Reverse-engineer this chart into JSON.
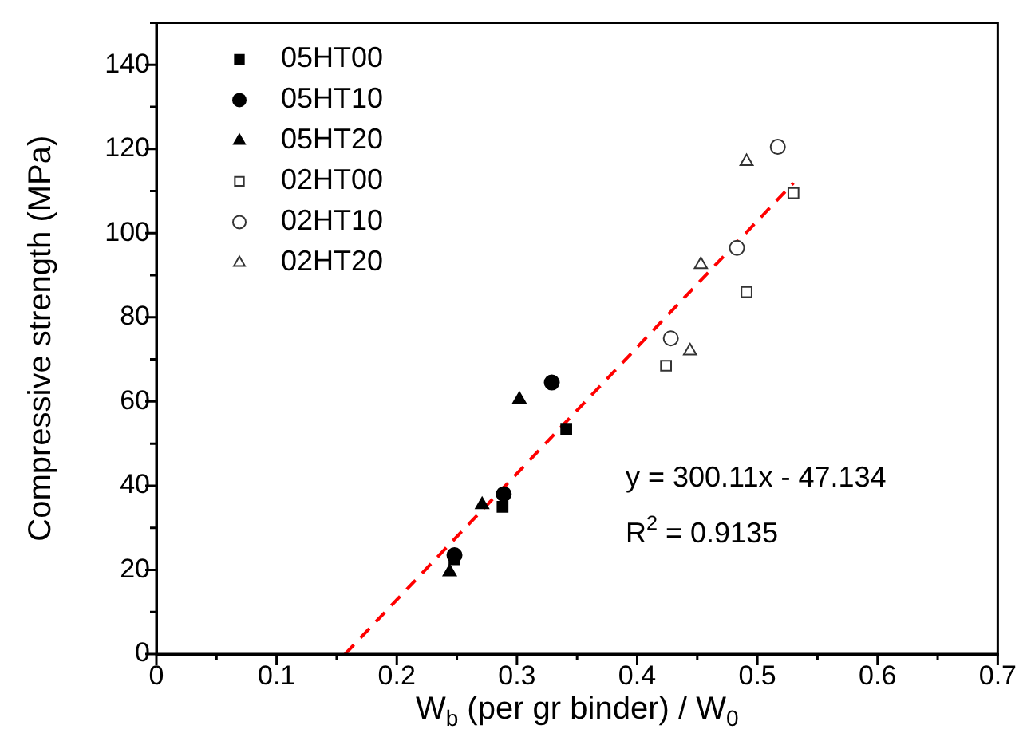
{
  "chart_data": {
    "type": "scatter",
    "xlabel": "W$_{b}$ (per gr binder) / W$_{0}$",
    "ylabel": "Compressive strength (MPa)",
    "xlim": [
      0,
      0.7
    ],
    "ylim": [
      0,
      150
    ],
    "xticks": [
      0,
      {
        "value": 0.05,
        "label": null
      },
      0.1,
      {
        "value": 0.15,
        "label": null
      },
      0.2,
      {
        "value": 0.25,
        "label": null
      },
      0.3,
      {
        "value": 0.35,
        "label": null
      },
      0.4,
      {
        "value": 0.45,
        "label": null
      },
      0.5,
      {
        "value": 0.55,
        "label": null
      },
      0.6,
      {
        "value": 0.65,
        "label": null
      },
      0.7
    ],
    "yticks": [
      0,
      {
        "value": 10,
        "label": null
      },
      20,
      {
        "value": 30,
        "label": null
      },
      40,
      {
        "value": 50,
        "label": null
      },
      60,
      {
        "value": 70,
        "label": null
      },
      80,
      {
        "value": 90,
        "label": null
      },
      100,
      {
        "value": 110,
        "label": null
      },
      120,
      {
        "value": 130,
        "label": null
      },
      140,
      {
        "value": 150,
        "label": null
      }
    ],
    "legend": "top left",
    "grid": false,
    "series": [
      {
        "name": "05HT00",
        "color": "#000000",
        "marker": "square",
        "x": [
          0.248,
          0.288,
          0.341
        ],
        "values": [
          22.5,
          35,
          53.5
        ]
      },
      {
        "name": "05HT10",
        "color": "#000000",
        "marker": "circle",
        "x": [
          0.248,
          0.289,
          0.329
        ],
        "values": [
          23.5,
          38,
          64.5
        ]
      },
      {
        "name": "05HT20",
        "color": "#000000",
        "marker": "triangle",
        "x": [
          0.244,
          0.271,
          0.302
        ],
        "values": [
          19.5,
          35.5,
          60.5
        ]
      },
      {
        "name": "02HT00",
        "color": "#333333",
        "marker": "square-open",
        "x": [
          0.424,
          0.491,
          0.53
        ],
        "values": [
          68.5,
          86,
          109.5
        ]
      },
      {
        "name": "02HT10",
        "color": "#333333",
        "marker": "circle-open",
        "x": [
          0.428,
          0.483,
          0.517
        ],
        "values": [
          75,
          96.5,
          120.5
        ]
      },
      {
        "name": "02HT20",
        "color": "#333333",
        "marker": "triangle-open",
        "x": [
          0.444,
          0.453,
          0.491
        ],
        "values": [
          72,
          92.5,
          117
        ]
      },
      {
        "type": "line",
        "color": "#ff0000",
        "line_style": "dashed",
        "marker": "none",
        "x": [
          0.157,
          0.53
        ],
        "values": [
          0,
          111.9
        ]
      }
    ],
    "annotations": [
      "y = 300.11x - 47.134",
      "R$^{2}$ = 0.9135"
    ]
  }
}
